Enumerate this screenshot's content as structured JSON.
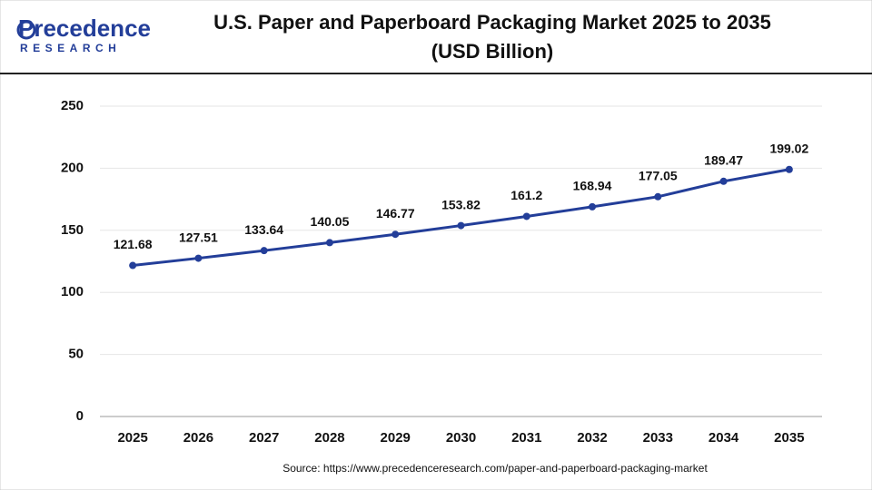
{
  "logo": {
    "name": "Precedence",
    "tagline": "RESEARCH"
  },
  "source": "Source: https://www.precedenceresearch.com/paper-and-paperboard-packaging-market",
  "chart_data": {
    "type": "line",
    "title": "U.S. Paper and Paperboard Packaging Market 2025 to 2035",
    "subtitle": "(USD Billion)",
    "categories": [
      "2025",
      "2026",
      "2027",
      "2028",
      "2029",
      "2030",
      "2031",
      "2032",
      "2033",
      "2034",
      "2035"
    ],
    "values": [
      121.68,
      127.51,
      133.64,
      140.05,
      146.77,
      153.82,
      161.2,
      168.94,
      177.05,
      189.47,
      199.02
    ],
    "color": "#233e99",
    "ylim": [
      0,
      250
    ],
    "yticks": [
      0,
      50,
      100,
      150,
      200,
      250
    ],
    "grid": true
  }
}
